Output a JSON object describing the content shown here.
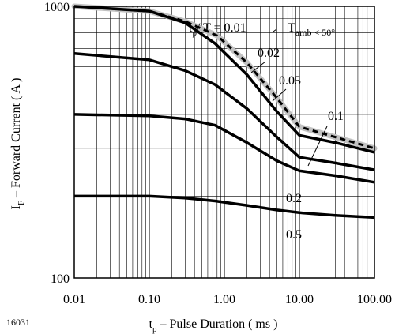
{
  "figure_id": "16031",
  "chart_data": {
    "type": "line",
    "xscale": "log",
    "yscale": "log",
    "xlim": [
      0.01,
      100
    ],
    "ylim": [
      100,
      1000
    ],
    "grid": true,
    "xlabel": {
      "main": "t",
      "sub": "p",
      "rest": " – Pulse Duration ( ms )"
    },
    "ylabel": {
      "main": "I",
      "sub": "F",
      "rest": " – Forward Current ( A )"
    },
    "x_ticks": [
      {
        "value": 0.01,
        "label": "0.01"
      },
      {
        "value": 0.1,
        "label": "0.10"
      },
      {
        "value": 1,
        "label": "1.00"
      },
      {
        "value": 10,
        "label": "10.00"
      },
      {
        "value": 100,
        "label": "100.00"
      }
    ],
    "y_ticks": [
      {
        "value": 1000,
        "label": "1000"
      },
      {
        "value": 100,
        "label": "100"
      }
    ],
    "annotation": {
      "main": "T",
      "sub": "amb < 50°"
    },
    "series": [
      {
        "label": "0.01",
        "label_prefix": "t",
        "label_sub": "p",
        "label_mid": "/ T = ",
        "dashed": true,
        "points": [
          [
            0.01,
            1000
          ],
          [
            0.1,
            960
          ],
          [
            0.3,
            880
          ],
          [
            0.8,
            780
          ],
          [
            2,
            620
          ],
          [
            5,
            460
          ],
          [
            10,
            360
          ],
          [
            30,
            330
          ],
          [
            100,
            300
          ]
        ]
      },
      {
        "label": "0.02",
        "points": [
          [
            0.01,
            1000
          ],
          [
            0.1,
            960
          ],
          [
            0.3,
            870
          ],
          [
            0.75,
            730
          ],
          [
            2,
            560
          ],
          [
            5,
            410
          ],
          [
            10,
            335
          ],
          [
            30,
            315
          ],
          [
            100,
            290
          ]
        ]
      },
      {
        "label": "0.05",
        "points": [
          [
            0.01,
            670
          ],
          [
            0.1,
            635
          ],
          [
            0.3,
            580
          ],
          [
            0.75,
            515
          ],
          [
            2,
            420
          ],
          [
            5,
            330
          ],
          [
            10,
            278
          ],
          [
            30,
            265
          ],
          [
            100,
            250
          ]
        ]
      },
      {
        "label": "0.1",
        "points": [
          [
            0.01,
            400
          ],
          [
            0.1,
            395
          ],
          [
            0.3,
            385
          ],
          [
            0.75,
            365
          ],
          [
            2,
            315
          ],
          [
            5,
            270
          ],
          [
            10,
            248
          ],
          [
            30,
            238
          ],
          [
            100,
            225
          ]
        ]
      },
      {
        "label": "0.2",
        "points": [
          [
            0.01,
            200
          ],
          [
            0.1,
            200
          ],
          [
            0.3,
            197
          ],
          [
            0.75,
            192
          ],
          [
            2,
            185
          ],
          [
            5,
            178
          ],
          [
            10,
            174
          ],
          [
            30,
            170
          ],
          [
            100,
            167
          ]
        ]
      }
    ],
    "extra_labels": [
      {
        "text": "0.5"
      }
    ]
  }
}
